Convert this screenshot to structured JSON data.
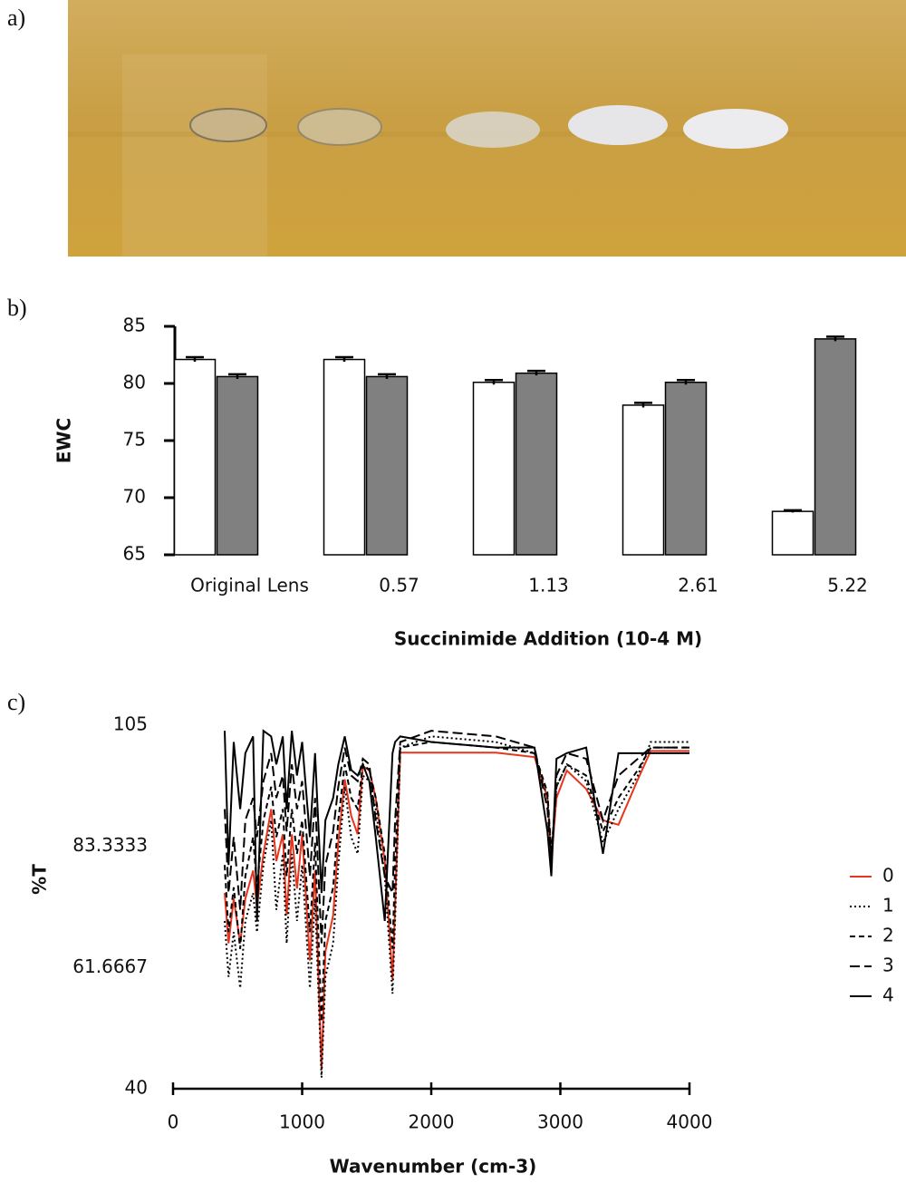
{
  "panel_labels": [
    "a)",
    "b)",
    "c)"
  ],
  "chart_data": [
    {
      "type": "bar",
      "categories": [
        "Original Lens",
        "0.57",
        "1.13",
        "2.61",
        "5.22"
      ],
      "series": [
        {
          "color": "#ffffff",
          "values": [
            82.1,
            82.1,
            80.1,
            78.1,
            68.8
          ],
          "errors": [
            0.2,
            0.2,
            0.2,
            0.2,
            0.1
          ]
        },
        {
          "color": "#808080",
          "values": [
            80.6,
            80.6,
            80.9,
            80.1,
            83.9
          ],
          "errors": [
            0.2,
            0.2,
            0.2,
            0.2,
            0.2
          ]
        }
      ],
      "y_label": "EWC",
      "x_label": "Succinimide Addition (10-4 M)",
      "ylim": [
        65,
        85
      ],
      "yticks": [
        65,
        70,
        75,
        80,
        85
      ],
      "grid": false
    },
    {
      "type": "line",
      "x": [
        400,
        430,
        470,
        520,
        560,
        620,
        650,
        700,
        760,
        800,
        850,
        880,
        920,
        960,
        1000,
        1060,
        1100,
        1150,
        1180,
        1240,
        1280,
        1330,
        1380,
        1430,
        1470,
        1520,
        1570,
        1640,
        1700,
        1720,
        1760,
        2000,
        2500,
        2800,
        2900,
        2930,
        2970,
        3050,
        3200,
        3330,
        3450,
        3600,
        3700,
        4000
      ],
      "series": [
        {
          "name": "0",
          "color": "#e8341c",
          "style": "solid",
          "values": [
            75,
            66,
            74,
            66,
            74,
            79,
            72.6,
            82,
            90,
            80.7,
            85.5,
            71,
            85.5,
            75.8,
            85.5,
            62.9,
            79,
            43.4,
            64.5,
            71,
            84,
            95.3,
            88.8,
            85.5,
            97.7,
            96.9,
            92,
            80.7,
            59.6,
            72.6,
            100.1,
            100.1,
            100.1,
            99.3,
            92,
            80.7,
            92,
            96.9,
            93.6,
            88,
            87.2,
            95.3,
            100.4,
            100.4
          ]
        },
        {
          "name": "1",
          "color": "#000000",
          "style": "dotted",
          "values": [
            70,
            60,
            68,
            58,
            70,
            75,
            68,
            80,
            88,
            72,
            82,
            66,
            82,
            70,
            80,
            58,
            74,
            42,
            60,
            66,
            80,
            94,
            85,
            82,
            96,
            95,
            90,
            78,
            57,
            70,
            101,
            103,
            102,
            100,
            92,
            82,
            94,
            98,
            95,
            84,
            90,
            96,
            102,
            102
          ]
        },
        {
          "name": "2",
          "color": "#000000",
          "style": "dashed",
          "values": [
            80,
            68,
            76,
            65,
            78,
            85,
            76,
            88,
            94,
            85,
            90,
            78,
            90,
            82,
            88,
            68,
            84,
            52,
            70,
            76,
            88,
            98,
            92,
            90,
            98,
            97,
            92,
            82,
            65,
            80,
            101,
            102,
            101,
            100,
            93,
            82,
            94,
            98,
            96,
            86,
            92,
            97,
            101,
            101
          ]
        },
        {
          "name": "3",
          "color": "#000000",
          "style": "longdash",
          "values": [
            90,
            75,
            85,
            72,
            88,
            92,
            85,
            95,
            100,
            92,
            96,
            86,
            98,
            90,
            95,
            78,
            92,
            66,
            80,
            86,
            94,
            101,
            96,
            95,
            99,
            98,
            88,
            78,
            75,
            88,
            102,
            104,
            103,
            101,
            90,
            80,
            96,
            100,
            99,
            88,
            96,
            99,
            101,
            101
          ]
        },
        {
          "name": "4",
          "color": "#000000",
          "style": "solid",
          "values": [
            104,
            80,
            102,
            90,
            100,
            103,
            70,
            104,
            103,
            98,
            103,
            90,
            104,
            96,
            102,
            85,
            100,
            75,
            88,
            92,
            98,
            103,
            97,
            96,
            98,
            95,
            85,
            70,
            100,
            102,
            103,
            102,
            101,
            101,
            86,
            78,
            99,
            100,
            101,
            82,
            100,
            100,
            100,
            100
          ]
        }
      ],
      "y_label": "%T",
      "x_label": "Wavenumber (cm-3)",
      "xlim": [
        0,
        4000
      ],
      "xticks": [
        0,
        1000,
        2000,
        3000,
        4000
      ],
      "ylim": [
        40,
        105
      ],
      "yticks": [
        40,
        61.6667,
        83.3333,
        105
      ],
      "legend": "right"
    }
  ]
}
